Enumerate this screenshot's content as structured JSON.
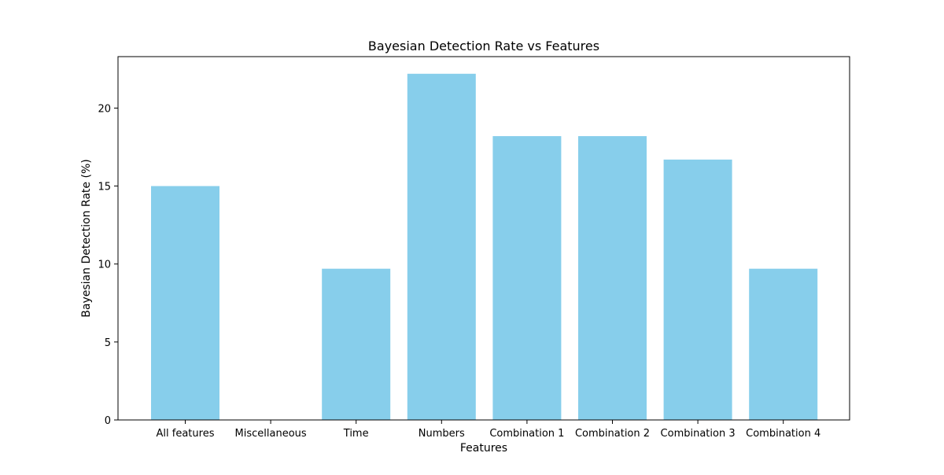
{
  "chart_data": {
    "type": "bar",
    "title": "Bayesian Detection Rate vs Features",
    "xlabel": "Features",
    "ylabel": "Bayesian Detection Rate (%)",
    "categories": [
      "All features",
      "Miscellaneous",
      "Time",
      "Numbers",
      "Combination 1",
      "Combination 2",
      "Combination 3",
      "Combination 4"
    ],
    "values": [
      15.0,
      0.0,
      9.7,
      22.2,
      18.2,
      18.2,
      16.7,
      9.7
    ],
    "ylim": [
      0,
      23.3
    ],
    "yticks": [
      0,
      5,
      10,
      15,
      20
    ],
    "bar_color": "#87CEEB",
    "grid": false,
    "legend": "none"
  }
}
